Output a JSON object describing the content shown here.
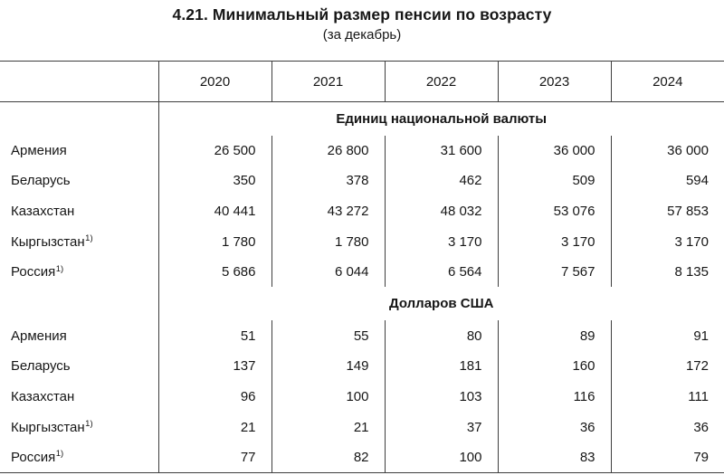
{
  "title": "4.21. Минимальный размер пенсии по возрасту",
  "subtitle": "(за декабрь)",
  "years": [
    "2020",
    "2021",
    "2022",
    "2023",
    "2024"
  ],
  "sections": [
    {
      "header": "Единиц национальной валюты",
      "rows": [
        {
          "label": "Армения",
          "footnote": "",
          "values": [
            "26 500",
            "26 800",
            "31 600",
            "36 000",
            "36 000"
          ]
        },
        {
          "label": "Беларусь",
          "footnote": "",
          "values": [
            "350",
            "378",
            "462",
            "509",
            "594"
          ]
        },
        {
          "label": "Казахстан",
          "footnote": "",
          "values": [
            "40 441",
            "43 272",
            "48 032",
            "53 076",
            "57 853"
          ]
        },
        {
          "label": "Кыргызстан",
          "footnote": "1)",
          "values": [
            "1 780",
            "1 780",
            "3 170",
            "3 170",
            "3 170"
          ]
        },
        {
          "label": "Россия",
          "footnote": "1)",
          "values": [
            "5 686",
            "6 044",
            "6 564",
            "7 567",
            "8 135"
          ]
        }
      ]
    },
    {
      "header": "Долларов США",
      "rows": [
        {
          "label": "Армения",
          "footnote": "",
          "values": [
            "51",
            "55",
            "80",
            "89",
            "91"
          ]
        },
        {
          "label": "Беларусь",
          "footnote": "",
          "values": [
            "137",
            "149",
            "181",
            "160",
            "172"
          ]
        },
        {
          "label": "Казахстан",
          "footnote": "",
          "values": [
            "96",
            "100",
            "103",
            "116",
            "111"
          ]
        },
        {
          "label": "Кыргызстан",
          "footnote": "1)",
          "values": [
            "21",
            "21",
            "37",
            "36",
            "36"
          ]
        },
        {
          "label": "Россия",
          "footnote": "1)",
          "values": [
            "77",
            "82",
            "100",
            "83",
            "79"
          ]
        }
      ]
    }
  ]
}
